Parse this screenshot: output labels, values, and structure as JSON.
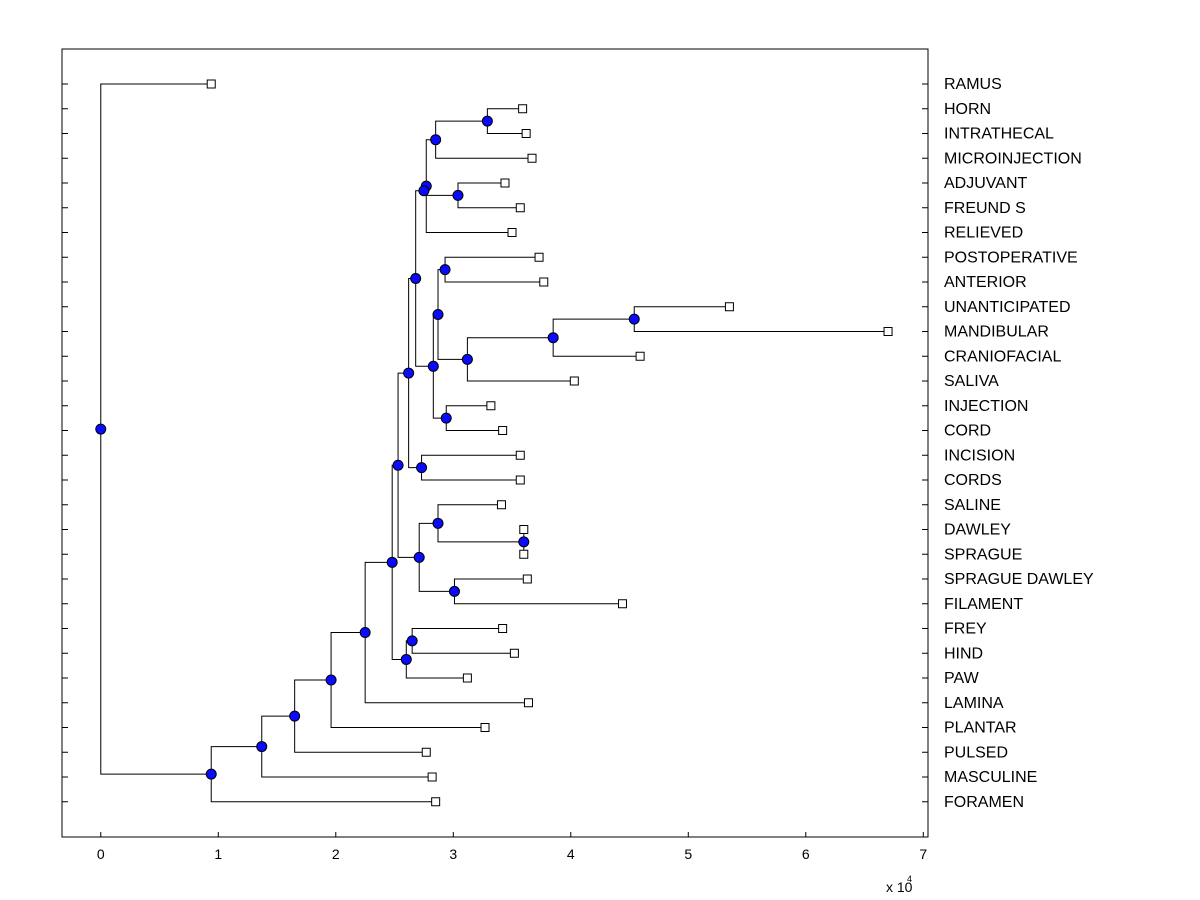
{
  "chart_data": {
    "type": "dendrogram",
    "title": "",
    "xlabel": "",
    "ylabel": "",
    "xlim": [
      -0.33,
      7.04
    ],
    "x_ticks": [
      0,
      1,
      2,
      3,
      4,
      5,
      6,
      7
    ],
    "x_tick_labels": [
      "0",
      "1",
      "2",
      "3",
      "4",
      "5",
      "6",
      "7"
    ],
    "x_multiplier_base": "x 10",
    "x_multiplier_exponent": "4",
    "leaves": [
      {
        "label": "RAMUS",
        "x": 0.94
      },
      {
        "label": "HORN",
        "x": 3.59
      },
      {
        "label": "INTRATHECAL",
        "x": 3.62
      },
      {
        "label": "MICROINJECTION",
        "x": 3.67
      },
      {
        "label": "ADJUVANT",
        "x": 3.44
      },
      {
        "label": "FREUND S",
        "x": 3.57
      },
      {
        "label": "RELIEVED",
        "x": 3.5
      },
      {
        "label": "POSTOPERATIVE",
        "x": 3.73
      },
      {
        "label": "ANTERIOR",
        "x": 3.77
      },
      {
        "label": "UNANTICIPATED",
        "x": 5.35
      },
      {
        "label": "MANDIBULAR",
        "x": 6.7
      },
      {
        "label": "CRANIOFACIAL",
        "x": 4.59
      },
      {
        "label": "SALIVA",
        "x": 4.03
      },
      {
        "label": "INJECTION",
        "x": 3.32
      },
      {
        "label": "CORD",
        "x": 3.42
      },
      {
        "label": "INCISION",
        "x": 3.57
      },
      {
        "label": "CORDS",
        "x": 3.57
      },
      {
        "label": "SALINE",
        "x": 3.41
      },
      {
        "label": "DAWLEY",
        "x": 3.6
      },
      {
        "label": "SPRAGUE",
        "x": 3.6
      },
      {
        "label": "SPRAGUE DAWLEY",
        "x": 3.63
      },
      {
        "label": "FILAMENT",
        "x": 4.44
      },
      {
        "label": "FREY",
        "x": 3.42
      },
      {
        "label": "HIND",
        "x": 3.52
      },
      {
        "label": "PAW",
        "x": 3.12
      },
      {
        "label": "LAMINA",
        "x": 3.64
      },
      {
        "label": "PLANTAR",
        "x": 3.27
      },
      {
        "label": "PULSED",
        "x": 2.77
      },
      {
        "label": "MASCULINE",
        "x": 2.82
      },
      {
        "label": "FORAMEN",
        "x": 2.85
      }
    ],
    "merges": [
      {
        "x": 3.29,
        "children": [
          "L1",
          "L2"
        ]
      },
      {
        "x": 2.85,
        "children": [
          "N0",
          "L3"
        ]
      },
      {
        "x": 3.04,
        "children": [
          "L4",
          "L5"
        ]
      },
      {
        "x": 2.77,
        "children": [
          "N1",
          "L6"
        ]
      },
      {
        "x": 2.75,
        "children": [
          "N3",
          "N2"
        ]
      },
      {
        "x": 2.93,
        "children": [
          "L7",
          "L8"
        ]
      },
      {
        "x": 4.54,
        "children": [
          "L9",
          "L10"
        ]
      },
      {
        "x": 3.85,
        "children": [
          "N6",
          "L11"
        ]
      },
      {
        "x": 3.12,
        "children": [
          "N7",
          "L12"
        ]
      },
      {
        "x": 2.87,
        "children": [
          "N5",
          "N8"
        ]
      },
      {
        "x": 2.94,
        "children": [
          "L13",
          "L14"
        ]
      },
      {
        "x": 2.83,
        "children": [
          "N9",
          "N10"
        ]
      },
      {
        "x": 2.68,
        "children": [
          "N4",
          "N11"
        ]
      },
      {
        "x": 2.73,
        "children": [
          "L15",
          "L16"
        ]
      },
      {
        "x": 2.62,
        "children": [
          "N12",
          "N13"
        ]
      },
      {
        "x": 3.6,
        "children": [
          "L18",
          "L19"
        ]
      },
      {
        "x": 2.87,
        "children": [
          "L17",
          "N15"
        ]
      },
      {
        "x": 3.01,
        "children": [
          "L20",
          "L21"
        ]
      },
      {
        "x": 2.71,
        "children": [
          "N16",
          "N17"
        ]
      },
      {
        "x": 2.53,
        "children": [
          "N14",
          "N18"
        ]
      },
      {
        "x": 2.65,
        "children": [
          "L22",
          "L23"
        ]
      },
      {
        "x": 2.6,
        "children": [
          "N20",
          "L24"
        ]
      },
      {
        "x": 2.48,
        "children": [
          "N19",
          "N21"
        ]
      },
      {
        "x": 2.25,
        "children": [
          "N22",
          "L25"
        ]
      },
      {
        "x": 1.96,
        "children": [
          "N23",
          "L26"
        ]
      },
      {
        "x": 1.65,
        "children": [
          "N24",
          "L27"
        ]
      },
      {
        "x": 1.37,
        "children": [
          "N25",
          "L28"
        ]
      },
      {
        "x": 0.94,
        "children": [
          "N26",
          "L29"
        ]
      },
      {
        "x": 0.0,
        "children": [
          "L0",
          "N27"
        ]
      }
    ]
  }
}
